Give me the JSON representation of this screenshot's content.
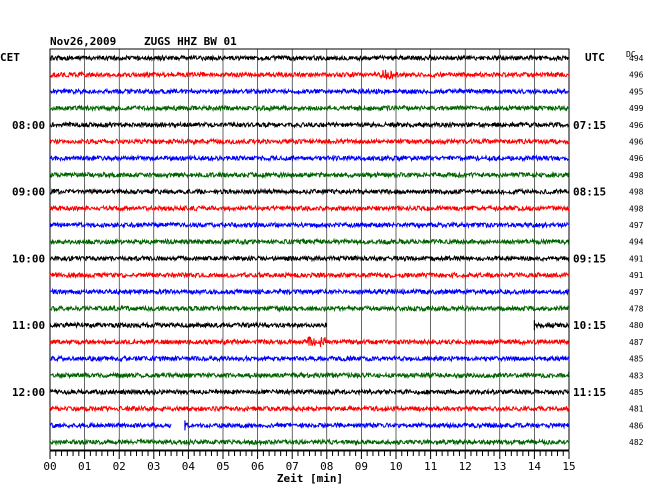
{
  "header": {
    "date": "Nov26,2009",
    "station": "ZUGS HHZ BW 01",
    "left_tz": "CET",
    "right_tz": "UTC",
    "dc_label": "DC"
  },
  "colors": {
    "trace_cycle": [
      "#000000",
      "#ff0000",
      "#0000ff",
      "#006400"
    ]
  },
  "chart_data": {
    "type": "line",
    "title": "Nov26,2009   ZUGS HHZ BW 01",
    "xlabel": "Zeit [min]",
    "ylabel": "",
    "x_ticks": [
      "00",
      "01",
      "02",
      "03",
      "04",
      "05",
      "06",
      "07",
      "08",
      "09",
      "10",
      "11",
      "12",
      "13",
      "14",
      "15"
    ],
    "xlim": [
      0,
      15
    ],
    "grid": "vertical-minutes",
    "rows": 24,
    "left_time_labels": [
      {
        "row": 4,
        "text": "08:00"
      },
      {
        "row": 8,
        "text": "09:00"
      },
      {
        "row": 12,
        "text": "10:00"
      },
      {
        "row": 16,
        "text": "11:00"
      },
      {
        "row": 20,
        "text": "12:00"
      }
    ],
    "right_time_labels": [
      {
        "row": 4,
        "text": "07:15"
      },
      {
        "row": 8,
        "text": "08:15"
      },
      {
        "row": 12,
        "text": "09:15"
      },
      {
        "row": 16,
        "text": "10:15"
      },
      {
        "row": 20,
        "text": "11:15"
      }
    ],
    "dc_offsets": [
      "494",
      "496",
      "495",
      "499",
      "496",
      "496",
      "496",
      "498",
      "498",
      "498",
      "497",
      "494",
      "491",
      "491",
      "497",
      "478",
      "480",
      "487",
      "485",
      "483",
      "485",
      "481",
      "486",
      "482"
    ],
    "gaps": [
      {
        "row": 16,
        "from_min": 8.0,
        "to_min": 14.0
      },
      {
        "row": 22,
        "from_min": 3.5,
        "to_min": 3.9
      }
    ],
    "events": [
      {
        "row": 1,
        "at_min": 9.7
      },
      {
        "row": 17,
        "at_min": 7.7
      }
    ]
  }
}
